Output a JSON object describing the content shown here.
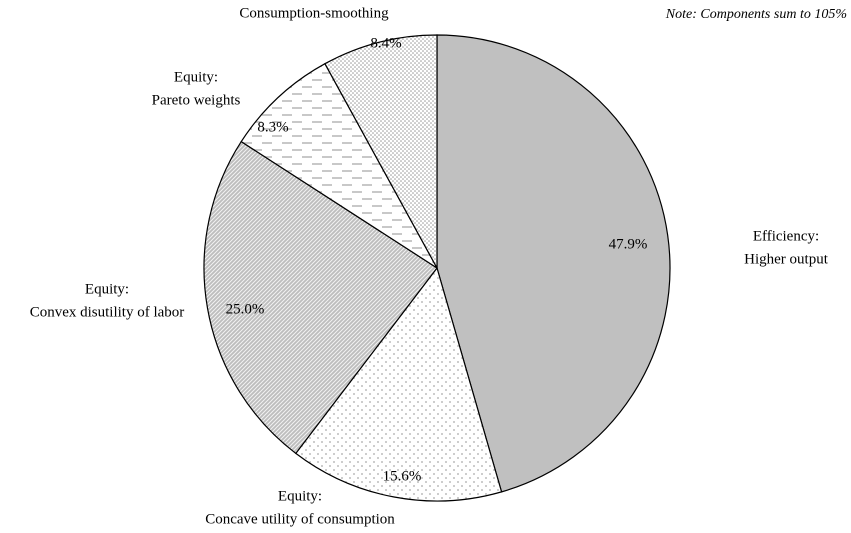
{
  "chart_data": {
    "type": "pie",
    "note": "Note: Components sum to 105%",
    "categories": [
      [
        "Efficiency:",
        "Higher output"
      ],
      [
        "Equity:",
        "Concave utility of consumption"
      ],
      [
        "Equity:",
        "Convex disutility of labor"
      ],
      [
        "Equity:",
        "Pareto weights"
      ],
      [
        "Consumption-smoothing"
      ]
    ],
    "values": [
      47.9,
      15.6,
      25.0,
      8.3,
      8.4
    ],
    "value_labels": [
      "47.9%",
      "15.6%",
      "25.0%",
      "8.3%",
      "8.4%"
    ],
    "colors": [
      "#c0c0c0",
      "url(#dots-sparse)",
      "url(#diag)",
      "url(#dashes)",
      "url(#dots-dense)"
    ]
  }
}
